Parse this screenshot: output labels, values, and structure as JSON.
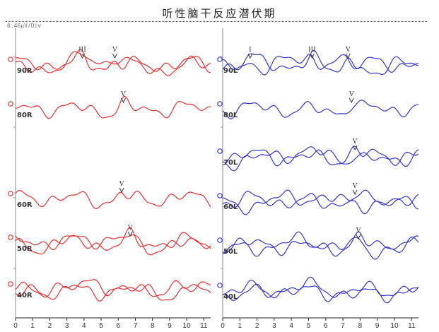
{
  "title": "听性脑干反应潜伏期",
  "scale": "0.46μV/Div",
  "colors": {
    "right": "#e83030",
    "left": "#3535d0",
    "axis": "#222222",
    "grid": "#888888"
  },
  "x_ticks": [
    "0",
    "1",
    "2",
    "3",
    "4",
    "5",
    "6",
    "7",
    "8",
    "9",
    "10",
    "11"
  ],
  "right_traces": [
    {
      "label": "90R",
      "peaks": [
        {
          "name": "III",
          "t": 3.9
        },
        {
          "name": "V",
          "t": 5.8
        }
      ]
    },
    {
      "label": "80R",
      "peaks": [
        {
          "name": "V",
          "t": 6.3
        }
      ]
    },
    {
      "label": "60R",
      "peaks": [
        {
          "name": "V",
          "t": 6.2
        }
      ]
    },
    {
      "label": "50R",
      "peaks": [
        {
          "name": "V",
          "t": 6.7
        }
      ]
    },
    {
      "label": "40R",
      "peaks": []
    }
  ],
  "left_traces": [
    {
      "label": "90L",
      "peaks": [
        {
          "name": "I",
          "t": 1.6
        },
        {
          "name": "III",
          "t": 5.2
        },
        {
          "name": "V",
          "t": 7.3
        }
      ]
    },
    {
      "label": "80L",
      "peaks": [
        {
          "name": "V",
          "t": 7.5
        }
      ]
    },
    {
      "label": "70L",
      "peaks": [
        {
          "name": "V",
          "t": 7.7
        }
      ]
    },
    {
      "label": "60L",
      "peaks": [
        {
          "name": "V",
          "t": 7.7
        }
      ]
    },
    {
      "label": "50L",
      "peaks": [
        {
          "name": "V",
          "t": 7.9
        }
      ]
    },
    {
      "label": "40L",
      "peaks": []
    }
  ]
}
